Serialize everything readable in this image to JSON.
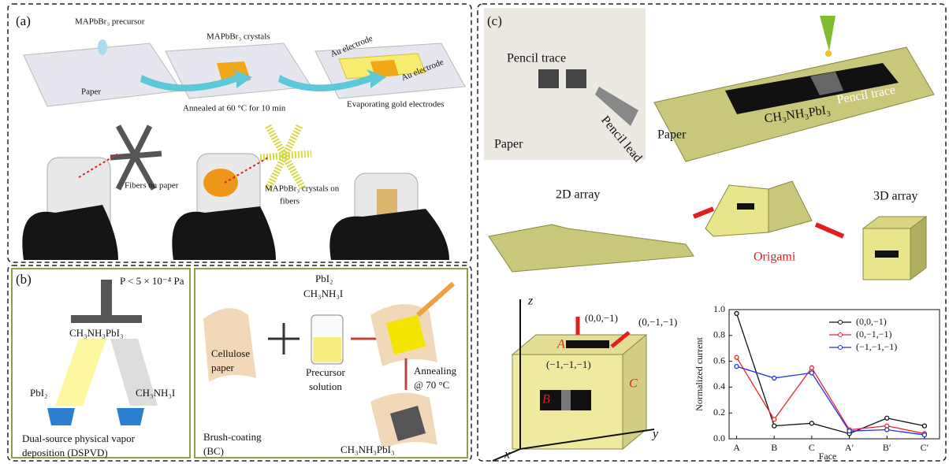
{
  "panel_a": {
    "label": "(a)",
    "precursor": "MAPbBr₃ precursor",
    "paper": "Paper",
    "crystals": "MAPbBr₃ crystals",
    "anneal": "Annealed at 60 °C for 10 min",
    "electrode_1": "Au electrode",
    "electrode_2": "Au electrode",
    "evaporating": "Evaporating gold electrodes",
    "fibers": "Fibers on paper",
    "crystals_fibers": [
      "MAPbBr₃ crystals on",
      "fibers"
    ]
  },
  "panel_b": {
    "label": "(b)",
    "pressure": "P < 5 × 10⁻⁴ Pa",
    "product_1": "CH₃NH₃PbI₃",
    "source_1": "PbI₂",
    "source_2": "CH₃NH₃I",
    "method_1": [
      "Dual-source physical vapor",
      "deposition (DSPVD)"
    ],
    "paper": [
      "Cellulose",
      "paper"
    ],
    "reagents": [
      "PbI₂",
      "CH₃NH₃I"
    ],
    "solution": [
      "Precursor",
      "solution"
    ],
    "annealing": [
      "Annealing",
      "@ 70 °C"
    ],
    "method_2": [
      "Brush-coating",
      "(BC)"
    ],
    "product_2": "CH₃NH₃PbI₃"
  },
  "panel_c": {
    "label": "(c)",
    "pencil_trace_1": "Pencil trace",
    "pencil_lead": "Pencil lead",
    "paper_1": "Paper",
    "pencil_trace_2": "Pencil trace",
    "perovskite": "CH₃NH₃PbI₃",
    "paper_2": "Paper",
    "array_2d": "2D array",
    "array_3d": "3D array",
    "origami": "Origami",
    "axis_z": "z",
    "axis_y": "y",
    "axis_x": "x",
    "dir_1": "(0,0,−1)",
    "dir_2": "(0,−1,−1)",
    "dir_3": "(−1,−1,−1)",
    "face_a": "A",
    "face_b": "B",
    "face_c": "C"
  },
  "chart_data": {
    "type": "line",
    "x_label": "Face",
    "y_label": "Normalized current",
    "categories": [
      "A",
      "B",
      "C",
      "A′",
      "B′",
      "C′"
    ],
    "series": [
      {
        "name": "(0,0,−1)",
        "color": "#111111",
        "values": [
          0.97,
          0.1,
          0.12,
          0.04,
          0.16,
          0.1
        ]
      },
      {
        "name": "(0,−1,−1)",
        "color": "#e8262a",
        "values": [
          0.63,
          0.15,
          0.55,
          0.07,
          0.1,
          0.04
        ]
      },
      {
        "name": "(−1,−1,−1)",
        "color": "#2233dd",
        "values": [
          0.56,
          0.47,
          0.51,
          0.06,
          0.07,
          0.03
        ]
      }
    ],
    "ylim": [
      0,
      1
    ],
    "yticks": [
      {
        "value": 0,
        "label": "0.0"
      },
      0.2,
      0.4,
      0.6,
      0.8,
      {
        "value": 1,
        "label": "1.0"
      }
    ],
    "legend": "upper right"
  }
}
